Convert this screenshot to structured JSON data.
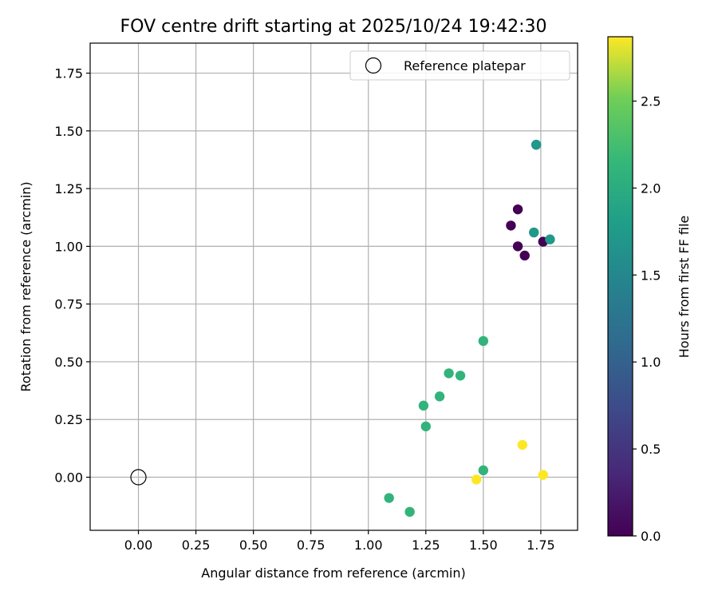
{
  "chart_data": {
    "type": "scatter",
    "title": "FOV centre drift starting at 2025/10/24 19:42:30",
    "xlabel": "Angular distance from reference (arcmin)",
    "ylabel": "Rotation from reference (arcmin)",
    "xlim": [
      -0.21,
      1.91
    ],
    "ylim": [
      -0.23,
      1.88
    ],
    "xticks": [
      0.0,
      0.25,
      0.5,
      0.75,
      1.0,
      1.25,
      1.5,
      1.75
    ],
    "xtick_labels": [
      "0.00",
      "0.25",
      "0.50",
      "0.75",
      "1.00",
      "1.25",
      "1.50",
      "1.75"
    ],
    "yticks": [
      0.0,
      0.25,
      0.5,
      0.75,
      1.0,
      1.25,
      1.5,
      1.75
    ],
    "ytick_labels": [
      "0.00",
      "0.25",
      "0.50",
      "0.75",
      "1.00",
      "1.25",
      "1.50",
      "1.75"
    ],
    "grid": true,
    "legend": {
      "position": "top-right",
      "entries": [
        "Reference platepar"
      ]
    },
    "reference_point": {
      "x": 0.0,
      "y": 0.0,
      "label": "Reference platepar"
    },
    "colorbar": {
      "label": "Hours from first FF file",
      "colormap": "viridis",
      "range": [
        0.0,
        2.87
      ],
      "ticks": [
        0.0,
        0.5,
        1.0,
        1.5,
        2.0,
        2.5
      ],
      "tick_labels": [
        "0.0",
        "0.5",
        "1.0",
        "1.5",
        "2.0",
        "2.5"
      ]
    },
    "points": [
      {
        "x": 1.62,
        "y": 1.09,
        "hours": 0.0
      },
      {
        "x": 1.65,
        "y": 1.16,
        "hours": 0.0
      },
      {
        "x": 1.65,
        "y": 1.0,
        "hours": 0.0
      },
      {
        "x": 1.68,
        "y": 0.96,
        "hours": 0.0
      },
      {
        "x": 1.76,
        "y": 1.02,
        "hours": 0.0
      },
      {
        "x": 1.73,
        "y": 1.44,
        "hours": 1.68
      },
      {
        "x": 1.73,
        "y": 1.44,
        "hours": 1.72
      },
      {
        "x": 1.72,
        "y": 1.06,
        "hours": 1.72
      },
      {
        "x": 1.79,
        "y": 1.03,
        "hours": 1.72
      },
      {
        "x": 1.5,
        "y": 0.59,
        "hours": 2.1
      },
      {
        "x": 1.35,
        "y": 0.45,
        "hours": 2.1
      },
      {
        "x": 1.4,
        "y": 0.44,
        "hours": 2.1
      },
      {
        "x": 1.31,
        "y": 0.35,
        "hours": 2.1
      },
      {
        "x": 1.24,
        "y": 0.31,
        "hours": 2.1
      },
      {
        "x": 1.25,
        "y": 0.22,
        "hours": 2.1
      },
      {
        "x": 1.5,
        "y": 0.03,
        "hours": 2.1
      },
      {
        "x": 1.09,
        "y": -0.09,
        "hours": 2.1
      },
      {
        "x": 1.18,
        "y": -0.15,
        "hours": 2.1
      },
      {
        "x": 1.67,
        "y": 0.14,
        "hours": 2.87
      },
      {
        "x": 1.47,
        "y": -0.01,
        "hours": 2.87
      },
      {
        "x": 1.76,
        "y": 0.01,
        "hours": 2.87
      }
    ]
  }
}
